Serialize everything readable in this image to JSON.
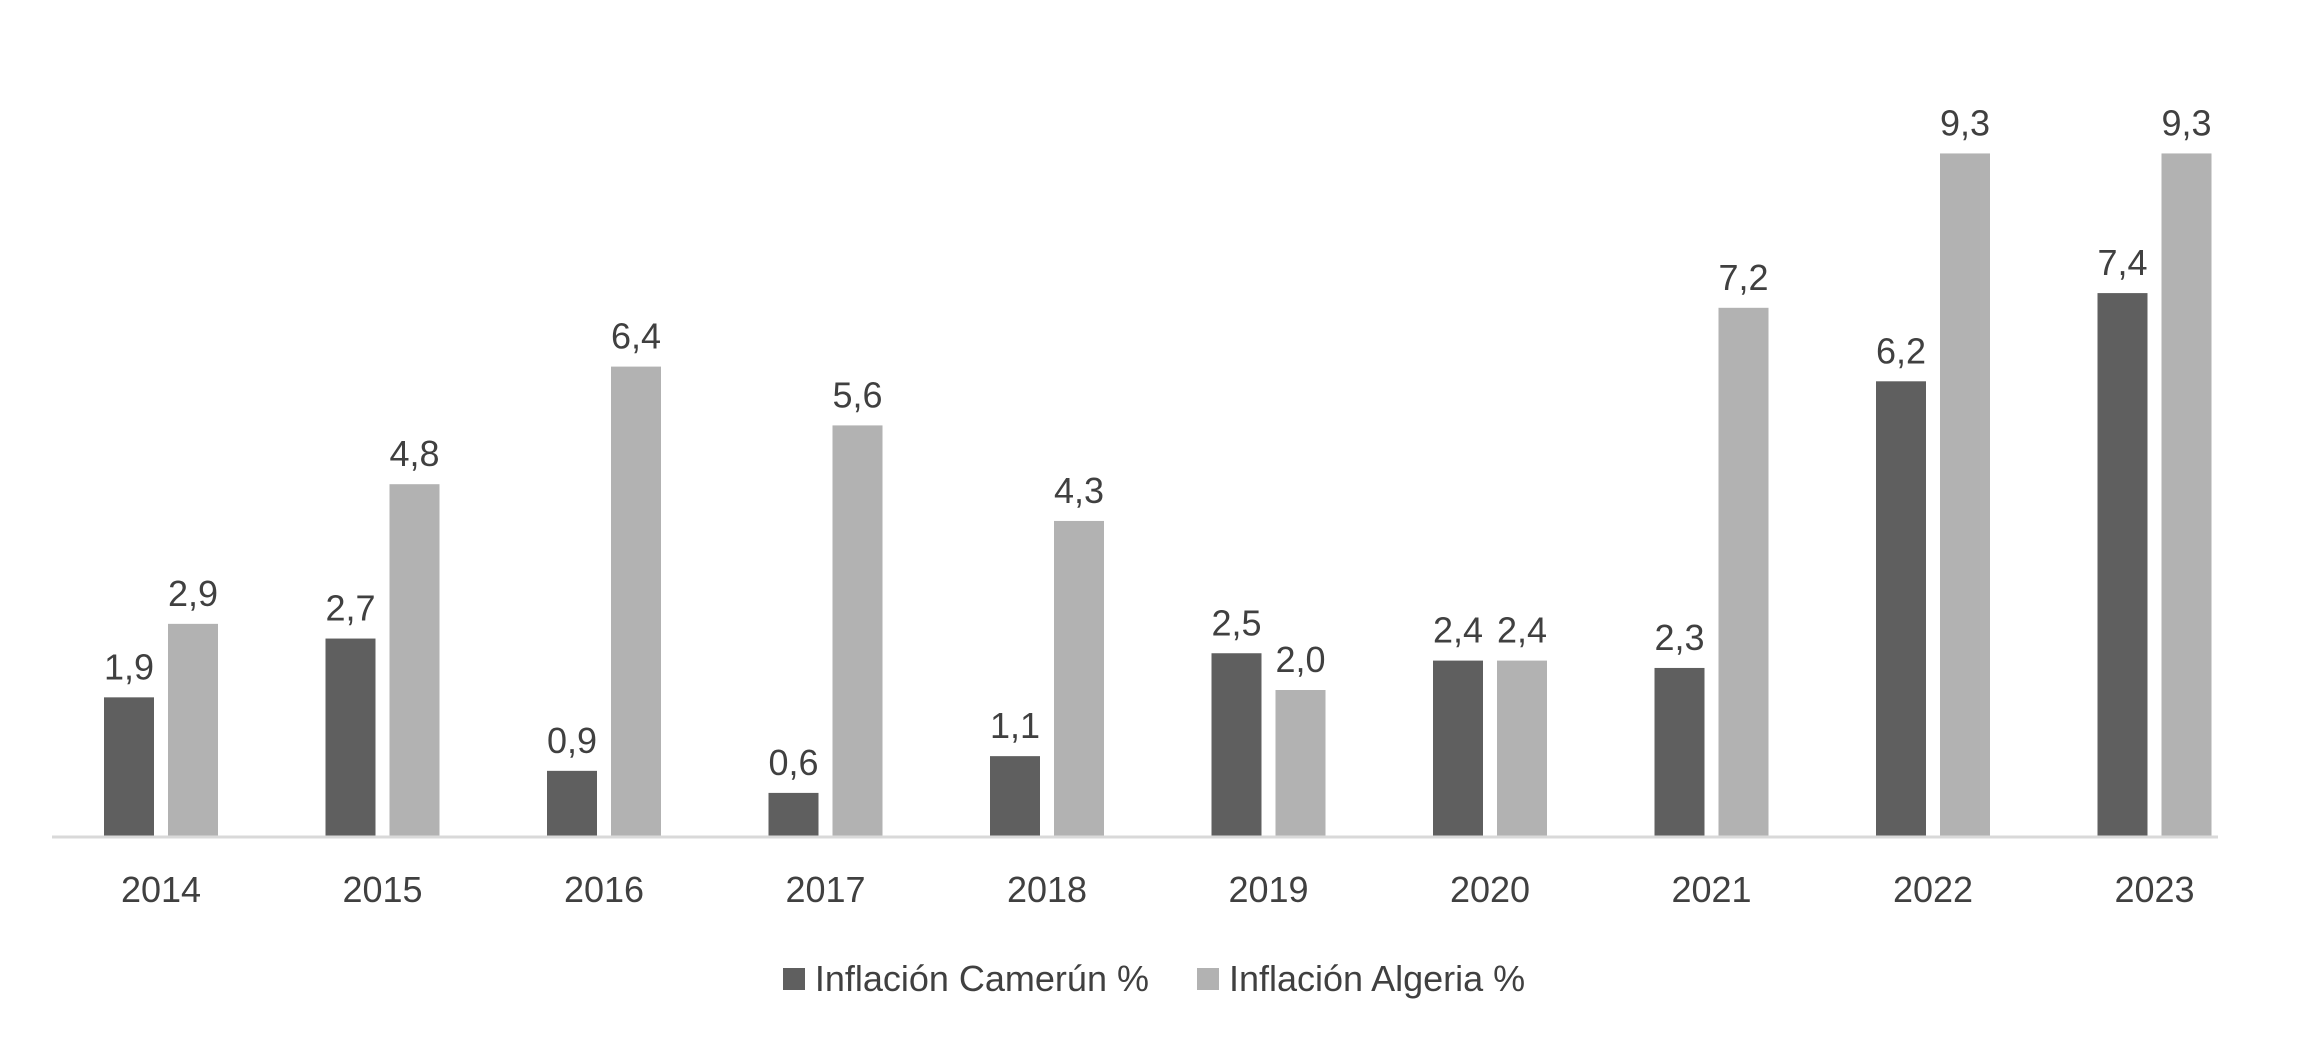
{
  "chart_data": {
    "type": "bar",
    "title": "",
    "xlabel": "",
    "ylabel": "",
    "ylim": [
      0,
      10
    ],
    "grid": false,
    "legend_position": "bottom",
    "categories": [
      "2014",
      "2015",
      "2016",
      "2017",
      "2018",
      "2019",
      "2020",
      "2021",
      "2022",
      "2023"
    ],
    "series": [
      {
        "name": "Inflación Camerún %",
        "color": "#5f5f5f",
        "values": [
          1.9,
          2.7,
          0.9,
          0.6,
          1.1,
          2.5,
          2.4,
          2.3,
          6.2,
          7.4
        ],
        "labels": [
          "1,9",
          "2,7",
          "0,9",
          "0,6",
          "1,1",
          "2,5",
          "2,4",
          "2,3",
          "6,2",
          "7,4"
        ]
      },
      {
        "name": "Inflación Algeria %",
        "color": "#b2b2b2",
        "values": [
          2.9,
          4.8,
          6.4,
          5.6,
          4.3,
          2.0,
          2.4,
          7.2,
          9.3,
          9.3
        ],
        "labels": [
          "2,9",
          "4,8",
          "6,4",
          "5,6",
          "4,3",
          "2,0",
          "2,4",
          "7,2",
          "9,3",
          "9,3"
        ]
      }
    ]
  }
}
